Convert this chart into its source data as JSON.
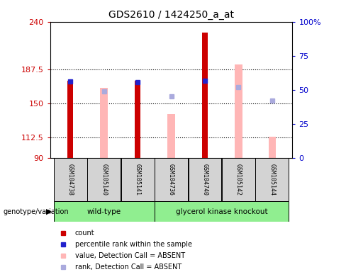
{
  "title": "GDS2610 / 1424250_a_at",
  "samples": [
    "GSM104738",
    "GSM105140",
    "GSM105141",
    "GSM104736",
    "GSM104740",
    "GSM105142",
    "GSM105144"
  ],
  "count_values": [
    175,
    null,
    175,
    null,
    228,
    null,
    null
  ],
  "pink_bar_values": [
    null,
    167,
    null,
    138,
    null,
    193,
    113
  ],
  "blue_sq_present": [
    174,
    null,
    173,
    null,
    175,
    null,
    null
  ],
  "blue_sq_absent": [
    null,
    163,
    null,
    158,
    null,
    168,
    153
  ],
  "count_color": "#CC0000",
  "pink_bar_color": "#FFB6B6",
  "blue_present_color": "#2222CC",
  "blue_absent_color": "#AAAADD",
  "ylim_left": [
    90,
    240
  ],
  "ylim_right": [
    0,
    100
  ],
  "yticks_left": [
    90,
    112.5,
    150,
    187.5,
    240
  ],
  "yticks_right": [
    0,
    25,
    50,
    75,
    100
  ],
  "ylabel_left_color": "#CC0000",
  "ylabel_right_color": "#0000CC",
  "sample_bg": "#D3D3D3",
  "group_bg": "#90EE90",
  "wild_type_range": [
    0,
    2
  ],
  "gk_range": [
    3,
    6
  ],
  "legend_items": [
    "count",
    "percentile rank within the sample",
    "value, Detection Call = ABSENT",
    "rank, Detection Call = ABSENT"
  ],
  "legend_colors": [
    "#CC0000",
    "#2222CC",
    "#FFB6B6",
    "#AAAADD"
  ]
}
